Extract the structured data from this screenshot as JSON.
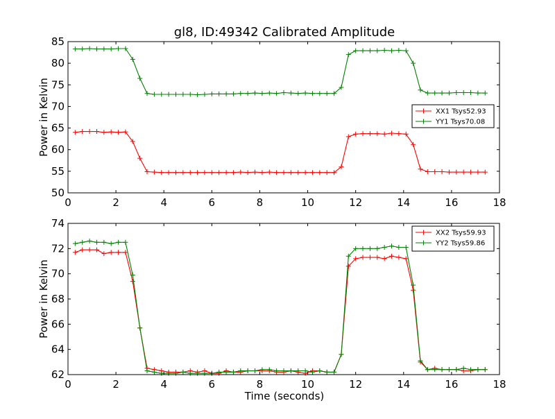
{
  "figure": {
    "title": "gl8, ID:49342 Calibrated Amplitude",
    "xlabel": "Time (seconds)",
    "colors": {
      "red": "#ff0000",
      "green": "#008000"
    }
  },
  "chart_data": [
    {
      "type": "line",
      "title": "gl8, ID:49342 Calibrated Amplitude",
      "xlabel": "",
      "ylabel": "Power in Kelvin",
      "xlim": [
        0,
        18
      ],
      "ylim": [
        50,
        85
      ],
      "xticks": [
        "0",
        "2",
        "4",
        "6",
        "8",
        "10",
        "12",
        "14",
        "16",
        "18"
      ],
      "yticks": [
        "50",
        "55",
        "60",
        "65",
        "70",
        "75",
        "80",
        "85"
      ],
      "legend_position": "right",
      "x": [
        0.3,
        0.6,
        0.9,
        1.2,
        1.5,
        1.8,
        2.1,
        2.4,
        2.7,
        3.0,
        3.3,
        3.6,
        3.9,
        4.2,
        4.5,
        4.8,
        5.1,
        5.4,
        5.7,
        6.0,
        6.3,
        6.6,
        6.9,
        7.2,
        7.5,
        7.8,
        8.1,
        8.4,
        8.7,
        9.0,
        9.3,
        9.6,
        9.9,
        10.2,
        10.5,
        10.8,
        11.1,
        11.4,
        11.7,
        12.0,
        12.3,
        12.6,
        12.9,
        13.2,
        13.5,
        13.8,
        14.1,
        14.4,
        14.7,
        15.0,
        15.3,
        15.6,
        15.9,
        16.2,
        16.5,
        16.8,
        17.1,
        17.4
      ],
      "series": [
        {
          "name": "XX1 Tsys52.93",
          "color": "#ff0000",
          "values": [
            64.0,
            64.2,
            64.2,
            64.2,
            64.0,
            64.1,
            64.0,
            64.1,
            61.9,
            58.0,
            54.9,
            54.8,
            54.7,
            54.7,
            54.7,
            54.7,
            54.7,
            54.7,
            54.7,
            54.7,
            54.7,
            54.7,
            54.7,
            54.8,
            54.7,
            54.8,
            54.7,
            54.8,
            54.7,
            54.7,
            54.7,
            54.7,
            54.7,
            54.7,
            54.7,
            54.7,
            54.7,
            56.0,
            63.0,
            63.6,
            63.7,
            63.7,
            63.7,
            63.6,
            63.8,
            63.7,
            63.6,
            61.2,
            55.5,
            54.9,
            54.9,
            54.9,
            54.8,
            54.8,
            54.8,
            54.8,
            54.8,
            54.8
          ]
        },
        {
          "name": "YY1 Tsys70.08",
          "color": "#008000",
          "values": [
            83.3,
            83.3,
            83.4,
            83.3,
            83.3,
            83.3,
            83.4,
            83.4,
            80.9,
            76.5,
            73.0,
            72.8,
            72.8,
            72.8,
            72.8,
            72.8,
            72.8,
            72.7,
            72.8,
            72.9,
            72.9,
            72.9,
            72.9,
            73.0,
            73.0,
            73.1,
            73.0,
            73.1,
            73.0,
            73.2,
            73.1,
            73.0,
            73.1,
            73.0,
            73.0,
            73.0,
            73.0,
            74.4,
            82.0,
            82.9,
            82.9,
            82.9,
            82.9,
            83.0,
            82.9,
            83.0,
            82.9,
            80.0,
            73.8,
            73.1,
            73.1,
            73.1,
            73.1,
            73.2,
            73.2,
            73.2,
            73.1,
            73.1
          ]
        }
      ]
    },
    {
      "type": "line",
      "title": "",
      "xlabel": "Time (seconds)",
      "ylabel": "Power in Kelvin",
      "xlim": [
        0,
        18
      ],
      "ylim": [
        62,
        74
      ],
      "xticks": [
        "0",
        "2",
        "4",
        "6",
        "8",
        "10",
        "12",
        "14",
        "16",
        "18"
      ],
      "yticks": [
        "62",
        "64",
        "66",
        "68",
        "70",
        "72",
        "74"
      ],
      "legend_position": "top-right",
      "x": [
        0.3,
        0.6,
        0.9,
        1.2,
        1.5,
        1.8,
        2.1,
        2.4,
        2.7,
        3.0,
        3.3,
        3.6,
        3.9,
        4.2,
        4.5,
        4.8,
        5.1,
        5.4,
        5.7,
        6.0,
        6.3,
        6.6,
        6.9,
        7.2,
        7.5,
        7.8,
        8.1,
        8.4,
        8.7,
        9.0,
        9.3,
        9.6,
        9.9,
        10.2,
        10.5,
        10.8,
        11.1,
        11.4,
        11.7,
        12.0,
        12.3,
        12.6,
        12.9,
        13.2,
        13.5,
        13.8,
        14.1,
        14.4,
        14.7,
        15.0,
        15.3,
        15.6,
        15.9,
        16.2,
        16.5,
        16.8,
        17.1,
        17.4
      ],
      "series": [
        {
          "name": "XX2 Tsys59.93",
          "color": "#ff0000",
          "values": [
            71.7,
            71.9,
            71.9,
            71.9,
            71.6,
            71.7,
            71.7,
            71.7,
            69.4,
            65.7,
            62.5,
            62.4,
            62.3,
            62.2,
            62.2,
            62.2,
            62.3,
            62.2,
            62.3,
            62.1,
            62.1,
            62.3,
            62.2,
            62.2,
            62.3,
            62.3,
            62.3,
            62.3,
            62.2,
            62.2,
            62.3,
            62.2,
            62.1,
            62.3,
            62.3,
            62.2,
            62.2,
            63.6,
            70.6,
            71.2,
            71.3,
            71.3,
            71.3,
            71.2,
            71.4,
            71.3,
            71.2,
            68.7,
            63.0,
            62.4,
            62.5,
            62.4,
            62.4,
            62.4,
            62.3,
            62.3,
            62.4,
            62.4
          ]
        },
        {
          "name": "YY2 Tsys59.86",
          "color": "#008000",
          "values": [
            72.4,
            72.5,
            72.6,
            72.5,
            72.5,
            72.4,
            72.5,
            72.5,
            69.9,
            65.7,
            62.3,
            62.2,
            62.1,
            62.1,
            62.1,
            62.2,
            62.1,
            62.1,
            62.1,
            62.1,
            62.2,
            62.2,
            62.2,
            62.3,
            62.3,
            62.3,
            62.4,
            62.4,
            62.3,
            62.3,
            62.3,
            62.3,
            62.3,
            62.2,
            62.3,
            62.2,
            62.2,
            63.6,
            71.4,
            72.0,
            72.0,
            72.0,
            72.0,
            72.1,
            72.2,
            72.1,
            72.1,
            69.1,
            63.1,
            62.4,
            62.4,
            62.4,
            62.4,
            62.4,
            62.5,
            62.4,
            62.4,
            62.4
          ]
        }
      ]
    }
  ]
}
